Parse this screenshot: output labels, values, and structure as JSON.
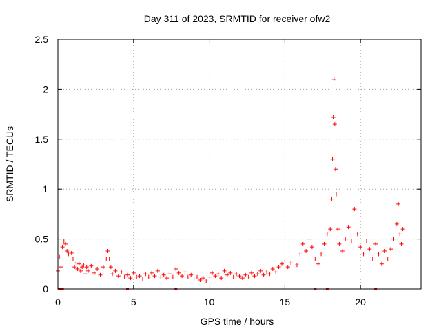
{
  "chart_data": {
    "type": "scatter",
    "title": "Day 311 of 2023, SRMTID for receiver ofw2",
    "xlabel": "GPS time / hours",
    "ylabel": "SRMTID / TECUs",
    "xlim": [
      0,
      24
    ],
    "ylim": [
      0,
      2.5
    ],
    "xticks": [
      0,
      5,
      10,
      15,
      20
    ],
    "yticks": [
      0,
      0.5,
      1,
      1.5,
      2,
      2.5
    ],
    "xtick_labels": [
      "0",
      "5",
      "10",
      "15",
      "20"
    ],
    "ytick_labels": [
      "0",
      "0.5",
      "1",
      "1.5",
      "2",
      "2.5"
    ],
    "grid": true,
    "marker": "+",
    "color": "#ff0000",
    "series": [
      {
        "name": "SRMTID",
        "points": [
          [
            0.0,
            0.18
          ],
          [
            0.1,
            0.32
          ],
          [
            0.2,
            0.22
          ],
          [
            0.3,
            0.42
          ],
          [
            0.4,
            0.48
          ],
          [
            0.5,
            0.45
          ],
          [
            0.6,
            0.38
          ],
          [
            0.7,
            0.35
          ],
          [
            0.8,
            0.3
          ],
          [
            0.9,
            0.36
          ],
          [
            1.0,
            0.3
          ],
          [
            1.1,
            0.22
          ],
          [
            1.2,
            0.26
          ],
          [
            1.3,
            0.2
          ],
          [
            1.4,
            0.25
          ],
          [
            1.5,
            0.18
          ],
          [
            1.6,
            0.22
          ],
          [
            1.7,
            0.24
          ],
          [
            1.8,
            0.15
          ],
          [
            1.9,
            0.22
          ],
          [
            2.0,
            0.18
          ],
          [
            2.2,
            0.23
          ],
          [
            2.4,
            0.16
          ],
          [
            2.6,
            0.2
          ],
          [
            2.8,
            0.14
          ],
          [
            3.0,
            0.22
          ],
          [
            3.2,
            0.3
          ],
          [
            3.3,
            0.38
          ],
          [
            3.4,
            0.3
          ],
          [
            3.5,
            0.22
          ],
          [
            3.6,
            0.15
          ],
          [
            3.8,
            0.18
          ],
          [
            4.0,
            0.13
          ],
          [
            4.2,
            0.17
          ],
          [
            4.4,
            0.12
          ],
          [
            4.6,
            0.14
          ],
          [
            4.8,
            0.11
          ],
          [
            5.0,
            0.16
          ],
          [
            5.2,
            0.12
          ],
          [
            5.4,
            0.13
          ],
          [
            5.6,
            0.1
          ],
          [
            5.8,
            0.15
          ],
          [
            6.0,
            0.12
          ],
          [
            6.2,
            0.16
          ],
          [
            6.4,
            0.13
          ],
          [
            6.6,
            0.18
          ],
          [
            6.8,
            0.12
          ],
          [
            7.0,
            0.14
          ],
          [
            7.2,
            0.11
          ],
          [
            7.4,
            0.15
          ],
          [
            7.6,
            0.12
          ],
          [
            7.8,
            0.2
          ],
          [
            8.0,
            0.16
          ],
          [
            8.2,
            0.13
          ],
          [
            8.4,
            0.17
          ],
          [
            8.6,
            0.12
          ],
          [
            8.8,
            0.14
          ],
          [
            9.0,
            0.1
          ],
          [
            9.2,
            0.12
          ],
          [
            9.4,
            0.09
          ],
          [
            9.6,
            0.11
          ],
          [
            9.8,
            0.08
          ],
          [
            10.0,
            0.12
          ],
          [
            10.2,
            0.16
          ],
          [
            10.4,
            0.13
          ],
          [
            10.6,
            0.15
          ],
          [
            10.8,
            0.11
          ],
          [
            11.0,
            0.18
          ],
          [
            11.2,
            0.14
          ],
          [
            11.4,
            0.16
          ],
          [
            11.6,
            0.12
          ],
          [
            11.8,
            0.15
          ],
          [
            12.0,
            0.13
          ],
          [
            12.2,
            0.11
          ],
          [
            12.4,
            0.14
          ],
          [
            12.6,
            0.12
          ],
          [
            12.8,
            0.16
          ],
          [
            13.0,
            0.13
          ],
          [
            13.2,
            0.15
          ],
          [
            13.4,
            0.18
          ],
          [
            13.6,
            0.14
          ],
          [
            13.8,
            0.17
          ],
          [
            14.0,
            0.15
          ],
          [
            14.2,
            0.2
          ],
          [
            14.4,
            0.17
          ],
          [
            14.6,
            0.22
          ],
          [
            14.8,
            0.25
          ],
          [
            15.0,
            0.28
          ],
          [
            15.2,
            0.22
          ],
          [
            15.4,
            0.26
          ],
          [
            15.6,
            0.3
          ],
          [
            15.8,
            0.24
          ],
          [
            16.0,
            0.35
          ],
          [
            16.2,
            0.45
          ],
          [
            16.4,
            0.38
          ],
          [
            16.6,
            0.5
          ],
          [
            16.8,
            0.42
          ],
          [
            17.0,
            0.3
          ],
          [
            17.2,
            0.25
          ],
          [
            17.4,
            0.35
          ],
          [
            17.6,
            0.45
          ],
          [
            17.8,
            0.55
          ],
          [
            18.0,
            0.6
          ],
          [
            18.1,
            0.9
          ],
          [
            18.15,
            1.3
          ],
          [
            18.2,
            1.72
          ],
          [
            18.25,
            2.1
          ],
          [
            18.3,
            1.65
          ],
          [
            18.35,
            1.2
          ],
          [
            18.4,
            0.95
          ],
          [
            18.5,
            0.6
          ],
          [
            18.6,
            0.45
          ],
          [
            18.8,
            0.38
          ],
          [
            19.0,
            0.5
          ],
          [
            19.2,
            0.62
          ],
          [
            19.4,
            0.48
          ],
          [
            19.6,
            0.8
          ],
          [
            19.8,
            0.55
          ],
          [
            20.0,
            0.42
          ],
          [
            20.2,
            0.35
          ],
          [
            20.4,
            0.48
          ],
          [
            20.6,
            0.4
          ],
          [
            20.8,
            0.3
          ],
          [
            21.0,
            0.45
          ],
          [
            21.2,
            0.35
          ],
          [
            21.4,
            0.25
          ],
          [
            21.6,
            0.38
          ],
          [
            21.8,
            0.3
          ],
          [
            22.0,
            0.4
          ],
          [
            22.2,
            0.5
          ],
          [
            22.4,
            0.65
          ],
          [
            22.5,
            0.85
          ],
          [
            22.6,
            0.55
          ],
          [
            22.7,
            0.45
          ],
          [
            22.8,
            0.6
          ]
        ]
      }
    ],
    "zero_points": [
      0.1,
      0.3,
      4.6,
      7.8,
      17.0,
      17.8,
      21.0
    ]
  }
}
